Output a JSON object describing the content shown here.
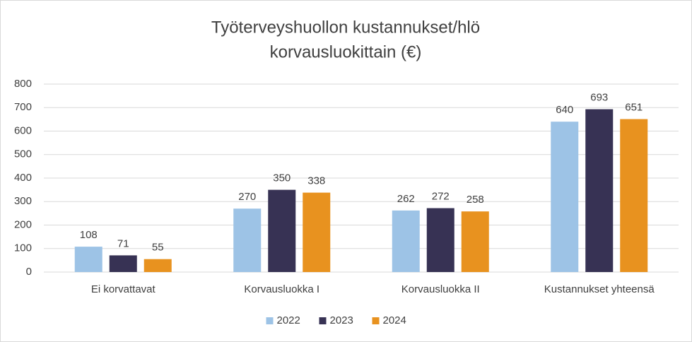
{
  "chart_data": {
    "type": "bar",
    "title": [
      "Työterveyshuollon kustannukset/hlö",
      "korvausluokittain (€)"
    ],
    "categories": [
      "Ei korvattavat",
      "Korvausluokka I",
      "Korvausluokka II",
      "Kustannukset yhteensä"
    ],
    "series": [
      {
        "name": "2022",
        "color": "#9dc3e6",
        "values": [
          108,
          270,
          262,
          640
        ]
      },
      {
        "name": "2023",
        "color": "#373254",
        "values": [
          71,
          350,
          272,
          693
        ]
      },
      {
        "name": "2024",
        "color": "#e8921f",
        "values": [
          55,
          338,
          258,
          651
        ]
      }
    ],
    "ylim": [
      0,
      800
    ],
    "yticks": [
      0,
      100,
      200,
      300,
      400,
      500,
      600,
      700,
      800
    ],
    "grid": true,
    "legend": "bottom"
  }
}
